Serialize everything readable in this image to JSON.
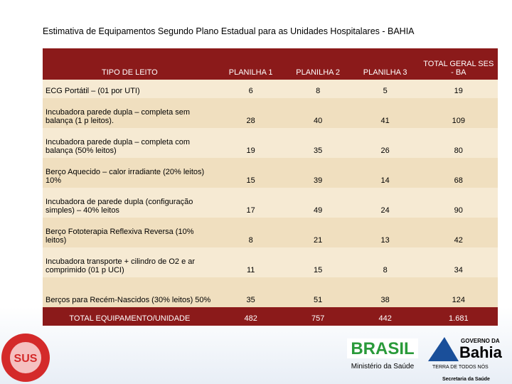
{
  "title": "Estimativa de Equipamentos Segundo Plano Estadual para as Unidades Hospitalares - BAHIA",
  "table": {
    "header": [
      "TIPO DE LEITO",
      "PLANILHA 1",
      "PLANILHA 2",
      "PLANILHA 3",
      "TOTAL GERAL SES - BA"
    ],
    "rows": [
      [
        "ECG Portátil – (01 por UTI)",
        "6",
        "8",
        "5",
        "19"
      ],
      [
        "Incubadora parede dupla – completa sem balança (1 p leitos).",
        "28",
        "40",
        "41",
        "109"
      ],
      [
        "Incubadora parede dupla – completa com balança (50% leitos)",
        "19",
        "35",
        "26",
        "80"
      ],
      [
        "Berço Aquecido – calor irradiante (20% leitos) 10%",
        "15",
        "39",
        "14",
        "68"
      ],
      [
        "Incubadora de parede dupla (configuração simples) – 40% leitos",
        "17",
        "49",
        "24",
        "90"
      ],
      [
        "Berço Fototerapia Reflexiva Reversa (10% leitos)",
        "8",
        "21",
        "13",
        "42"
      ],
      [
        "Incubadora transporte + cilindro de O2 e ar comprimido (01 p UCI)",
        "11",
        "15",
        "8",
        "34"
      ],
      [
        "Berços para Recém-Nascidos (30% leitos) 50%",
        "35",
        "51",
        "38",
        "124"
      ]
    ],
    "total": [
      "TOTAL EQUIPAMENTO/UNIDADE",
      "482",
      "757",
      "442",
      "1.681"
    ]
  },
  "footer": {
    "sus": "SUS",
    "brasil": "BRASIL",
    "ministerio": "Ministério da Saúde",
    "governo": "GOVERNO DA",
    "bahia": "Bahia",
    "terra": "TERRA DE TODOS NÓS",
    "secretaria": "Secretaria da Saúde"
  }
}
